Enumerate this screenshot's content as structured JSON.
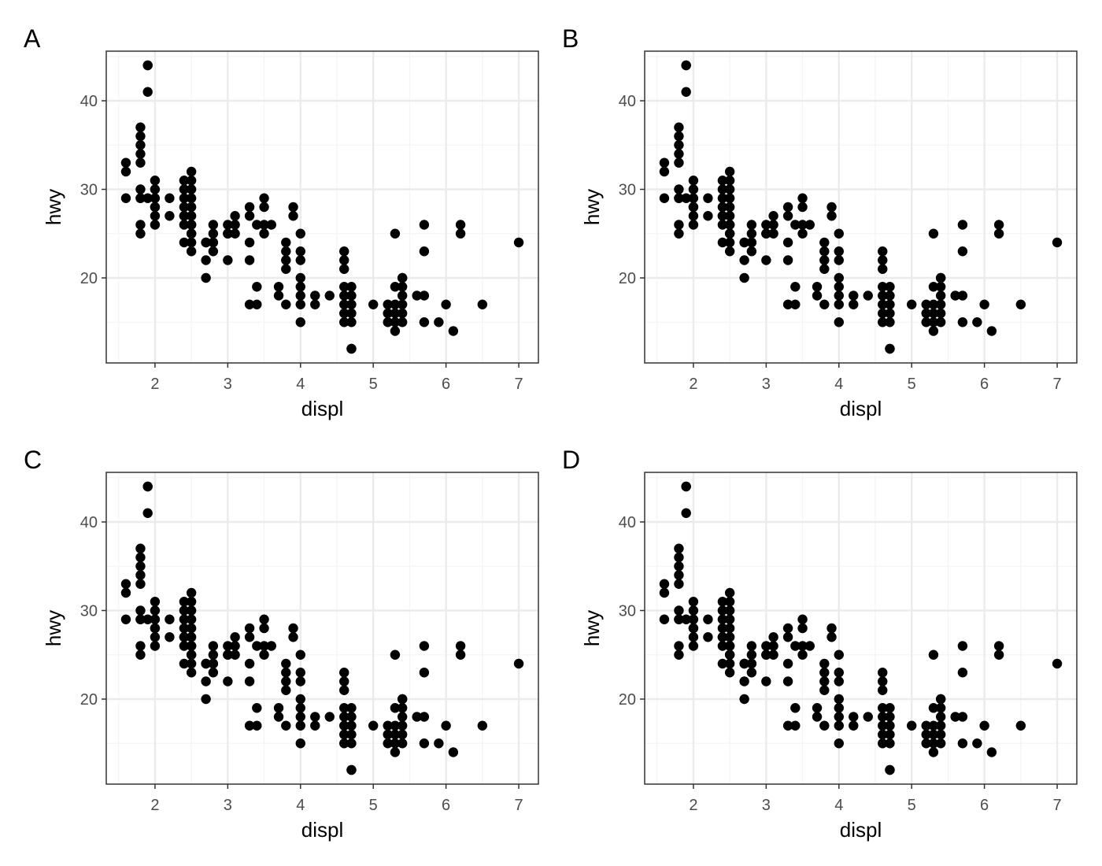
{
  "colors": {
    "panel_border": "#333333",
    "grid_major": "#ebebeb",
    "grid_minor": "#f4f4f4",
    "point": "#000000",
    "tick_text": "#4d4d4d",
    "tick_mark": "#333333"
  },
  "chart_data": [
    {
      "type": "scatter",
      "tag": "A",
      "xlabel": "displ",
      "ylabel": "hwy",
      "xlim": [
        1.33,
        7.27
      ],
      "ylim": [
        10.4,
        45.6
      ],
      "xticks": [
        2,
        3,
        4,
        5,
        6,
        7
      ],
      "yticks": [
        20,
        30,
        40
      ],
      "grid": true,
      "x": [
        1.6,
        1.6,
        1.6,
        1.8,
        1.8,
        1.8,
        1.8,
        1.8,
        1.8,
        1.8,
        1.8,
        1.8,
        1.8,
        1.9,
        1.9,
        1.9,
        1.9,
        2.0,
        2.0,
        2.0,
        2.0,
        2.0,
        2.0,
        2.0,
        2.2,
        2.2,
        2.4,
        2.4,
        2.4,
        2.4,
        2.4,
        2.4,
        2.4,
        2.4,
        2.5,
        2.5,
        2.5,
        2.5,
        2.5,
        2.5,
        2.5,
        2.5,
        2.5,
        2.5,
        2.5,
        2.5,
        2.7,
        2.7,
        2.7,
        2.7,
        2.8,
        2.8,
        2.8,
        2.8,
        2.8,
        3.0,
        3.0,
        3.0,
        3.0,
        3.1,
        3.1,
        3.1,
        3.3,
        3.3,
        3.3,
        3.3,
        3.3,
        3.4,
        3.4,
        3.4,
        3.5,
        3.5,
        3.5,
        3.5,
        3.6,
        3.7,
        3.7,
        3.8,
        3.8,
        3.8,
        3.8,
        3.8,
        3.9,
        3.9,
        4.0,
        4.0,
        4.0,
        4.0,
        4.0,
        4.0,
        4.0,
        4.0,
        4.2,
        4.2,
        4.4,
        4.6,
        4.6,
        4.6,
        4.6,
        4.6,
        4.6,
        4.6,
        4.6,
        4.7,
        4.7,
        4.7,
        4.7,
        4.7,
        4.7,
        4.7,
        5.0,
        5.2,
        5.2,
        5.2,
        5.3,
        5.3,
        5.3,
        5.3,
        5.3,
        5.3,
        5.4,
        5.4,
        5.4,
        5.4,
        5.4,
        5.4,
        5.4,
        5.6,
        5.7,
        5.7,
        5.7,
        5.7,
        5.9,
        6.0,
        6.1,
        6.2,
        6.2,
        6.5,
        7.0
      ],
      "y": [
        29,
        32,
        33,
        25,
        26,
        29,
        30,
        33,
        34,
        35,
        36,
        37,
        29,
        29,
        41,
        44,
        44,
        26,
        27,
        28,
        29,
        30,
        31,
        28,
        27,
        29,
        24,
        26,
        27,
        28,
        29,
        30,
        31,
        27,
        23,
        24,
        25,
        26,
        27,
        28,
        29,
        30,
        31,
        32,
        26,
        25,
        20,
        22,
        24,
        24,
        23,
        24,
        25,
        26,
        24,
        22,
        25,
        26,
        25,
        25,
        26,
        27,
        17,
        22,
        24,
        27,
        28,
        17,
        19,
        26,
        25,
        26,
        28,
        29,
        26,
        18,
        19,
        17,
        21,
        22,
        23,
        24,
        27,
        28,
        15,
        17,
        18,
        19,
        20,
        22,
        23,
        25,
        17,
        18,
        18,
        15,
        16,
        17,
        18,
        19,
        21,
        22,
        23,
        12,
        15,
        16,
        17,
        18,
        19,
        12,
        17,
        15,
        16,
        17,
        14,
        15,
        16,
        17,
        19,
        25,
        15,
        16,
        17,
        18,
        19,
        20,
        20,
        18,
        15,
        18,
        23,
        26,
        15,
        17,
        14,
        25,
        26,
        17,
        24
      ]
    },
    {
      "type": "scatter",
      "tag": "B",
      "xlabel": "displ",
      "ylabel": "hwy",
      "xlim": [
        1.33,
        7.27
      ],
      "ylim": [
        10.4,
        45.6
      ],
      "xticks": [
        2,
        3,
        4,
        5,
        6,
        7
      ],
      "yticks": [
        20,
        30,
        40
      ],
      "grid": true,
      "x": [
        1.6,
        1.6,
        1.6,
        1.8,
        1.8,
        1.8,
        1.8,
        1.8,
        1.8,
        1.8,
        1.8,
        1.8,
        1.8,
        1.9,
        1.9,
        1.9,
        1.9,
        2.0,
        2.0,
        2.0,
        2.0,
        2.0,
        2.0,
        2.0,
        2.2,
        2.2,
        2.4,
        2.4,
        2.4,
        2.4,
        2.4,
        2.4,
        2.4,
        2.4,
        2.5,
        2.5,
        2.5,
        2.5,
        2.5,
        2.5,
        2.5,
        2.5,
        2.5,
        2.5,
        2.5,
        2.5,
        2.7,
        2.7,
        2.7,
        2.7,
        2.8,
        2.8,
        2.8,
        2.8,
        2.8,
        3.0,
        3.0,
        3.0,
        3.0,
        3.1,
        3.1,
        3.1,
        3.3,
        3.3,
        3.3,
        3.3,
        3.3,
        3.4,
        3.4,
        3.4,
        3.5,
        3.5,
        3.5,
        3.5,
        3.6,
        3.7,
        3.7,
        3.8,
        3.8,
        3.8,
        3.8,
        3.8,
        3.9,
        3.9,
        4.0,
        4.0,
        4.0,
        4.0,
        4.0,
        4.0,
        4.0,
        4.0,
        4.2,
        4.2,
        4.4,
        4.6,
        4.6,
        4.6,
        4.6,
        4.6,
        4.6,
        4.6,
        4.6,
        4.7,
        4.7,
        4.7,
        4.7,
        4.7,
        4.7,
        4.7,
        5.0,
        5.2,
        5.2,
        5.2,
        5.3,
        5.3,
        5.3,
        5.3,
        5.3,
        5.3,
        5.4,
        5.4,
        5.4,
        5.4,
        5.4,
        5.4,
        5.4,
        5.6,
        5.7,
        5.7,
        5.7,
        5.7,
        5.9,
        6.0,
        6.1,
        6.2,
        6.2,
        6.5,
        7.0
      ],
      "y": [
        29,
        32,
        33,
        25,
        26,
        29,
        30,
        33,
        34,
        35,
        36,
        37,
        29,
        29,
        41,
        44,
        44,
        26,
        27,
        28,
        29,
        30,
        31,
        28,
        27,
        29,
        24,
        26,
        27,
        28,
        29,
        30,
        31,
        27,
        23,
        24,
        25,
        26,
        27,
        28,
        29,
        30,
        31,
        32,
        26,
        25,
        20,
        22,
        24,
        24,
        23,
        24,
        25,
        26,
        24,
        22,
        25,
        26,
        25,
        25,
        26,
        27,
        17,
        22,
        24,
        27,
        28,
        17,
        19,
        26,
        25,
        26,
        28,
        29,
        26,
        18,
        19,
        17,
        21,
        22,
        23,
        24,
        27,
        28,
        15,
        17,
        18,
        19,
        20,
        22,
        23,
        25,
        17,
        18,
        18,
        15,
        16,
        17,
        18,
        19,
        21,
        22,
        23,
        12,
        15,
        16,
        17,
        18,
        19,
        12,
        17,
        15,
        16,
        17,
        14,
        15,
        16,
        17,
        19,
        25,
        15,
        16,
        17,
        18,
        19,
        20,
        20,
        18,
        15,
        18,
        23,
        26,
        15,
        17,
        14,
        25,
        26,
        17,
        24
      ]
    },
    {
      "type": "scatter",
      "tag": "C",
      "xlabel": "displ",
      "ylabel": "hwy",
      "xlim": [
        1.33,
        7.27
      ],
      "ylim": [
        10.4,
        45.6
      ],
      "xticks": [
        2,
        3,
        4,
        5,
        6,
        7
      ],
      "yticks": [
        20,
        30,
        40
      ],
      "grid": true,
      "x": [
        1.6,
        1.6,
        1.6,
        1.8,
        1.8,
        1.8,
        1.8,
        1.8,
        1.8,
        1.8,
        1.8,
        1.8,
        1.8,
        1.9,
        1.9,
        1.9,
        1.9,
        2.0,
        2.0,
        2.0,
        2.0,
        2.0,
        2.0,
        2.0,
        2.2,
        2.2,
        2.4,
        2.4,
        2.4,
        2.4,
        2.4,
        2.4,
        2.4,
        2.4,
        2.5,
        2.5,
        2.5,
        2.5,
        2.5,
        2.5,
        2.5,
        2.5,
        2.5,
        2.5,
        2.5,
        2.5,
        2.7,
        2.7,
        2.7,
        2.7,
        2.8,
        2.8,
        2.8,
        2.8,
        2.8,
        3.0,
        3.0,
        3.0,
        3.0,
        3.1,
        3.1,
        3.1,
        3.3,
        3.3,
        3.3,
        3.3,
        3.3,
        3.4,
        3.4,
        3.4,
        3.5,
        3.5,
        3.5,
        3.5,
        3.6,
        3.7,
        3.7,
        3.8,
        3.8,
        3.8,
        3.8,
        3.8,
        3.9,
        3.9,
        4.0,
        4.0,
        4.0,
        4.0,
        4.0,
        4.0,
        4.0,
        4.0,
        4.2,
        4.2,
        4.4,
        4.6,
        4.6,
        4.6,
        4.6,
        4.6,
        4.6,
        4.6,
        4.6,
        4.7,
        4.7,
        4.7,
        4.7,
        4.7,
        4.7,
        4.7,
        5.0,
        5.2,
        5.2,
        5.2,
        5.3,
        5.3,
        5.3,
        5.3,
        5.3,
        5.3,
        5.4,
        5.4,
        5.4,
        5.4,
        5.4,
        5.4,
        5.4,
        5.6,
        5.7,
        5.7,
        5.7,
        5.7,
        5.9,
        6.0,
        6.1,
        6.2,
        6.2,
        6.5,
        7.0
      ],
      "y": [
        29,
        32,
        33,
        25,
        26,
        29,
        30,
        33,
        34,
        35,
        36,
        37,
        29,
        29,
        41,
        44,
        44,
        26,
        27,
        28,
        29,
        30,
        31,
        28,
        27,
        29,
        24,
        26,
        27,
        28,
        29,
        30,
        31,
        27,
        23,
        24,
        25,
        26,
        27,
        28,
        29,
        30,
        31,
        32,
        26,
        25,
        20,
        22,
        24,
        24,
        23,
        24,
        25,
        26,
        24,
        22,
        25,
        26,
        25,
        25,
        26,
        27,
        17,
        22,
        24,
        27,
        28,
        17,
        19,
        26,
        25,
        26,
        28,
        29,
        26,
        18,
        19,
        17,
        21,
        22,
        23,
        24,
        27,
        28,
        15,
        17,
        18,
        19,
        20,
        22,
        23,
        25,
        17,
        18,
        18,
        15,
        16,
        17,
        18,
        19,
        21,
        22,
        23,
        12,
        15,
        16,
        17,
        18,
        19,
        12,
        17,
        15,
        16,
        17,
        14,
        15,
        16,
        17,
        19,
        25,
        15,
        16,
        17,
        18,
        19,
        20,
        20,
        18,
        15,
        18,
        23,
        26,
        15,
        17,
        14,
        25,
        26,
        17,
        24
      ]
    },
    {
      "type": "scatter",
      "tag": "D",
      "xlabel": "displ",
      "ylabel": "hwy",
      "xlim": [
        1.33,
        7.27
      ],
      "ylim": [
        10.4,
        45.6
      ],
      "xticks": [
        2,
        3,
        4,
        5,
        6,
        7
      ],
      "yticks": [
        20,
        30,
        40
      ],
      "grid": true,
      "x": [
        1.6,
        1.6,
        1.6,
        1.8,
        1.8,
        1.8,
        1.8,
        1.8,
        1.8,
        1.8,
        1.8,
        1.8,
        1.8,
        1.9,
        1.9,
        1.9,
        1.9,
        2.0,
        2.0,
        2.0,
        2.0,
        2.0,
        2.0,
        2.0,
        2.2,
        2.2,
        2.4,
        2.4,
        2.4,
        2.4,
        2.4,
        2.4,
        2.4,
        2.4,
        2.5,
        2.5,
        2.5,
        2.5,
        2.5,
        2.5,
        2.5,
        2.5,
        2.5,
        2.5,
        2.5,
        2.5,
        2.7,
        2.7,
        2.7,
        2.7,
        2.8,
        2.8,
        2.8,
        2.8,
        2.8,
        3.0,
        3.0,
        3.0,
        3.0,
        3.1,
        3.1,
        3.1,
        3.3,
        3.3,
        3.3,
        3.3,
        3.3,
        3.4,
        3.4,
        3.4,
        3.5,
        3.5,
        3.5,
        3.5,
        3.6,
        3.7,
        3.7,
        3.8,
        3.8,
        3.8,
        3.8,
        3.8,
        3.9,
        3.9,
        4.0,
        4.0,
        4.0,
        4.0,
        4.0,
        4.0,
        4.0,
        4.0,
        4.2,
        4.2,
        4.4,
        4.6,
        4.6,
        4.6,
        4.6,
        4.6,
        4.6,
        4.6,
        4.6,
        4.7,
        4.7,
        4.7,
        4.7,
        4.7,
        4.7,
        4.7,
        5.0,
        5.2,
        5.2,
        5.2,
        5.3,
        5.3,
        5.3,
        5.3,
        5.3,
        5.3,
        5.4,
        5.4,
        5.4,
        5.4,
        5.4,
        5.4,
        5.4,
        5.6,
        5.7,
        5.7,
        5.7,
        5.7,
        5.9,
        6.0,
        6.1,
        6.2,
        6.2,
        6.5,
        7.0
      ],
      "y": [
        29,
        32,
        33,
        25,
        26,
        29,
        30,
        33,
        34,
        35,
        36,
        37,
        29,
        29,
        41,
        44,
        44,
        26,
        27,
        28,
        29,
        30,
        31,
        28,
        27,
        29,
        24,
        26,
        27,
        28,
        29,
        30,
        31,
        27,
        23,
        24,
        25,
        26,
        27,
        28,
        29,
        30,
        31,
        32,
        26,
        25,
        20,
        22,
        24,
        24,
        23,
        24,
        25,
        26,
        24,
        22,
        25,
        26,
        25,
        25,
        26,
        27,
        17,
        22,
        24,
        27,
        28,
        17,
        19,
        26,
        25,
        26,
        28,
        29,
        26,
        18,
        19,
        17,
        21,
        22,
        23,
        24,
        27,
        28,
        15,
        17,
        18,
        19,
        20,
        22,
        23,
        25,
        17,
        18,
        18,
        15,
        16,
        17,
        18,
        19,
        21,
        22,
        23,
        12,
        15,
        16,
        17,
        18,
        19,
        12,
        17,
        15,
        16,
        17,
        14,
        15,
        16,
        17,
        19,
        25,
        15,
        16,
        17,
        18,
        19,
        20,
        20,
        18,
        15,
        18,
        23,
        26,
        15,
        17,
        14,
        25,
        26,
        17,
        24
      ]
    }
  ]
}
